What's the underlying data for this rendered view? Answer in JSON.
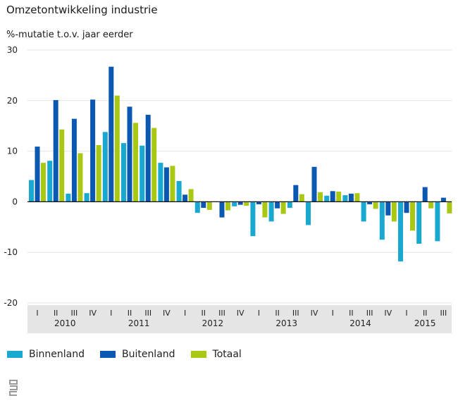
{
  "chart_data": {
    "type": "bar",
    "title": "Omzetontwikkeling industrie",
    "ylabel": "%-mutatie t.o.v. jaar eerder",
    "xlabel": "",
    "ylim": [
      -20,
      30
    ],
    "yticks": [
      30,
      20,
      10,
      0,
      -10,
      -20
    ],
    "grid": true,
    "legend_position": "bottom-left",
    "categories": [
      "I",
      "II",
      "III",
      "IV",
      "I",
      "II",
      "III",
      "IV",
      "I",
      "II",
      "III",
      "IV",
      "I",
      "II",
      "III",
      "IV",
      "I",
      "II",
      "III",
      "IV",
      "I",
      "II",
      "III"
    ],
    "years": [
      {
        "label": "2010",
        "start": 0,
        "end": 3
      },
      {
        "label": "2011",
        "start": 4,
        "end": 7
      },
      {
        "label": "2012",
        "start": 8,
        "end": 11
      },
      {
        "label": "2013",
        "start": 12,
        "end": 15
      },
      {
        "label": "2014",
        "start": 16,
        "end": 19
      },
      {
        "label": "2015",
        "start": 20,
        "end": 22
      }
    ],
    "series": [
      {
        "name": "Binnenland",
        "color": "#19a8cf",
        "values": [
          4.3,
          8.1,
          1.6,
          1.7,
          13.8,
          11.6,
          11.1,
          7.7,
          4.1,
          -2.2,
          0.0,
          -0.9,
          -6.8,
          -3.9,
          -1.2,
          -4.6,
          1.2,
          1.3,
          -3.9,
          -7.5,
          -11.8,
          -8.3,
          -7.8
        ]
      },
      {
        "name": "Buitenland",
        "color": "#0b58b3",
        "values": [
          10.9,
          20.1,
          16.4,
          20.2,
          26.7,
          18.8,
          17.2,
          6.8,
          1.4,
          -1.2,
          -3.1,
          -0.6,
          -0.5,
          -1.3,
          3.3,
          6.9,
          2.1,
          1.6,
          -0.5,
          -2.7,
          -2.2,
          2.9,
          0.8
        ]
      },
      {
        "name": "Totaal",
        "color": "#a8c814",
        "values": [
          7.7,
          14.3,
          9.6,
          11.2,
          21.0,
          15.6,
          14.6,
          7.1,
          2.5,
          -1.6,
          -1.7,
          -0.8,
          -3.1,
          -2.4,
          1.5,
          1.9,
          2.0,
          1.7,
          -1.4,
          -3.9,
          -5.7,
          -1.3,
          -2.3
        ]
      }
    ]
  },
  "legend": {
    "items": [
      {
        "label": "Binnenland",
        "color": "#19a8cf"
      },
      {
        "label": "Buitenland",
        "color": "#0b58b3"
      },
      {
        "label": "Totaal",
        "color": "#a8c814"
      }
    ]
  },
  "logo": {
    "name": "cbs-logo-icon"
  }
}
